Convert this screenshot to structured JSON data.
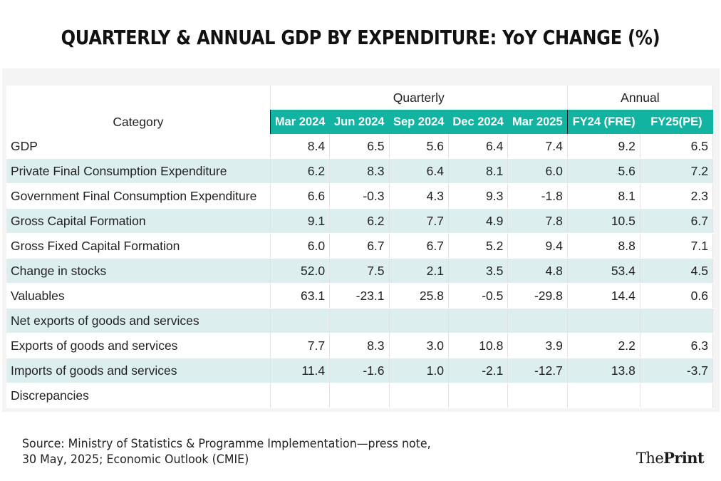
{
  "title": "QUARTERLY & ANNUAL GDP BY EXPENDITURE: YoY CHANGE (%)",
  "chart_data": {
    "type": "table",
    "title": "QUARTERLY & ANNUAL GDP BY EXPENDITURE: YoY CHANGE (%)",
    "category_header": "Category",
    "groups": [
      {
        "label": "Quarterly",
        "span": 5
      },
      {
        "label": "Annual",
        "span": 2
      }
    ],
    "columns": [
      "Mar 2024",
      "Jun 2024",
      "Sep 2024",
      "Dec 2024",
      "Mar 2025",
      "FY24 (FRE)",
      "FY25(PE)"
    ],
    "rows": [
      {
        "label": "GDP",
        "indent": 0,
        "values": [
          "8.4",
          "6.5",
          "5.6",
          "6.4",
          "7.4",
          "9.2",
          "6.5"
        ]
      },
      {
        "label": "Private Final Consumption Expenditure",
        "indent": 1,
        "values": [
          "6.2",
          "8.3",
          "6.4",
          "8.1",
          "6.0",
          "5.6",
          "7.2"
        ]
      },
      {
        "label": "Government Final Consumption Expenditure",
        "indent": 1,
        "values": [
          "6.6",
          "-0.3",
          "4.3",
          "9.3",
          "-1.8",
          "8.1",
          "2.3"
        ]
      },
      {
        "label": "Gross Capital Formation",
        "indent": 1,
        "values": [
          "9.1",
          "6.2",
          "7.7",
          "4.9",
          "7.8",
          "10.5",
          "6.7"
        ]
      },
      {
        "label": "Gross Fixed Capital Formation",
        "indent": 2,
        "values": [
          "6.0",
          "6.7",
          "6.7",
          "5.2",
          "9.4",
          "8.8",
          "7.1"
        ]
      },
      {
        "label": "Change in stocks",
        "indent": 2,
        "values": [
          "52.0",
          "7.5",
          "2.1",
          "3.5",
          "4.8",
          "53.4",
          "4.5"
        ]
      },
      {
        "label": "Valuables",
        "indent": 2,
        "values": [
          "63.1",
          "-23.1",
          "25.8",
          "-0.5",
          "-29.8",
          "14.4",
          "0.6"
        ]
      },
      {
        "label": "Net exports of goods and services",
        "indent": 1,
        "values": [
          "",
          "",
          "",
          "",
          "",
          "",
          ""
        ]
      },
      {
        "label": "Exports of goods and services",
        "indent": 2,
        "values": [
          "7.7",
          "8.3",
          "3.0",
          "10.8",
          "3.9",
          "2.2",
          "6.3"
        ]
      },
      {
        "label": "Imports of goods and services",
        "indent": 2,
        "values": [
          "11.4",
          "-1.6",
          "1.0",
          "-2.1",
          "-12.7",
          "13.8",
          "-3.7"
        ]
      },
      {
        "label": "Discrepancies",
        "indent": 1,
        "values": [
          "",
          "",
          "",
          "",
          "",
          "",
          ""
        ]
      }
    ]
  },
  "source_line1": "Source: Ministry of Statistics & Programme Implementation—press note,",
  "source_line2": "30 May, 2025; Economic Outlook (CMIE)",
  "logo": {
    "part1": "The",
    "part2": "Print"
  },
  "colors": {
    "header_bg": "#12b3a0",
    "row_shade": "#dcefee"
  }
}
